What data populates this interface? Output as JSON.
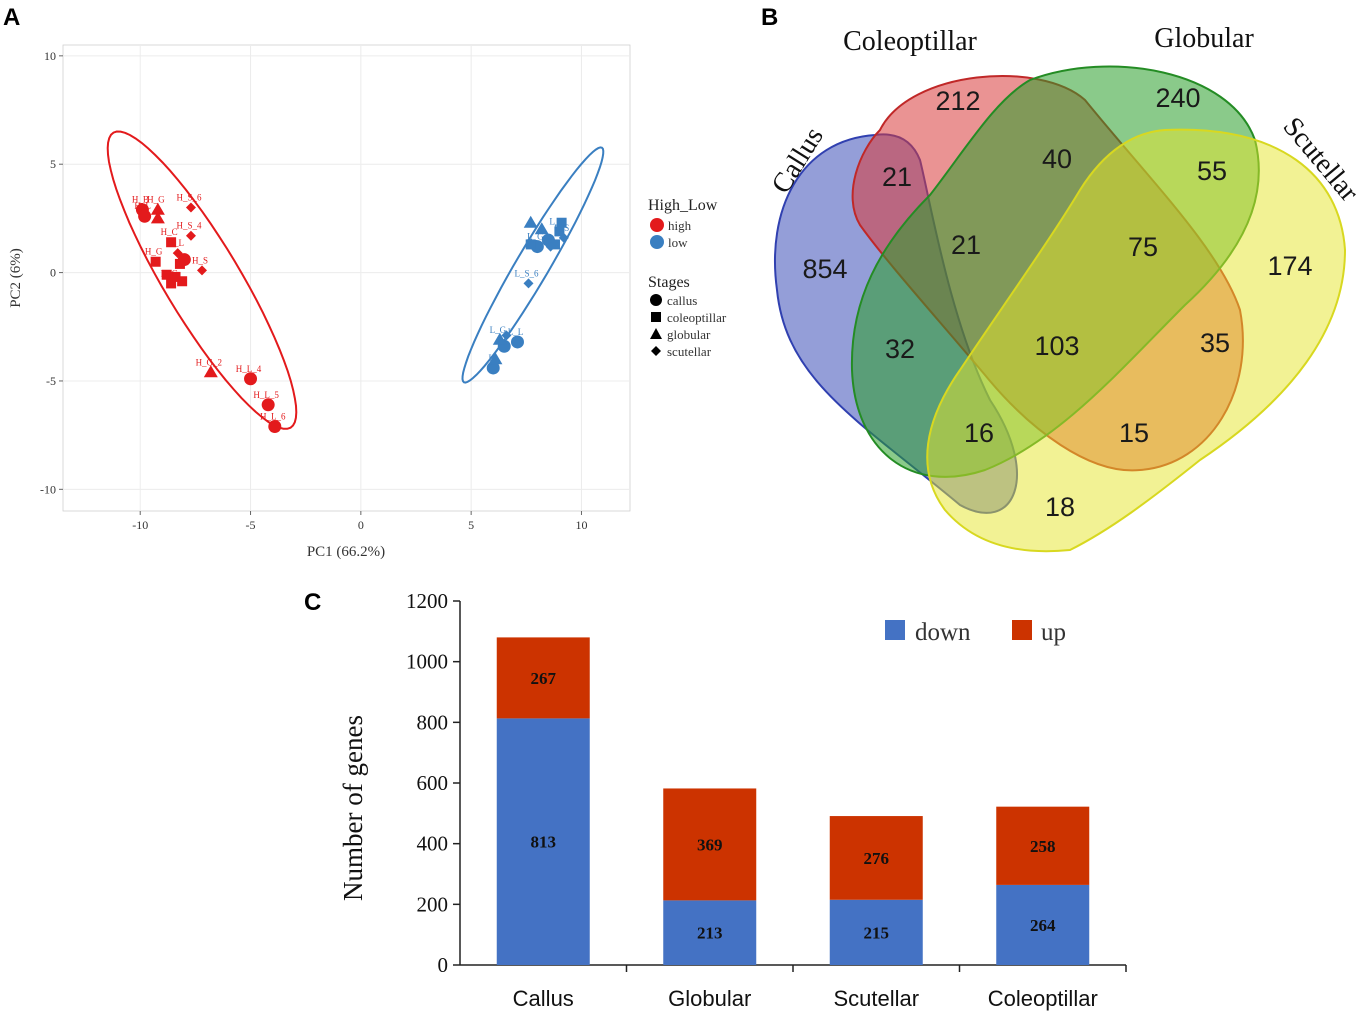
{
  "panels": {
    "a": "A",
    "b": "B",
    "c": "C"
  },
  "colors": {
    "high": "#e31a1c",
    "low": "#3a7fc1",
    "down": "#4472c4",
    "up": "#cc3300"
  },
  "chart_data": [
    {
      "type": "scatter",
      "xlabel": "PC1 (66.2%)",
      "ylabel": "PC2 (6%)",
      "xlim": [
        -13.5,
        12.2
      ],
      "ylim": [
        -11,
        10.5
      ],
      "xticks": [
        -10,
        -5,
        0,
        5,
        10
      ],
      "yticks": [
        -10,
        -5,
        0,
        5,
        10
      ],
      "xtick_labels": [
        "-10",
        "-5",
        "0",
        "5",
        "10"
      ],
      "ytick_labels": [
        "-10",
        "-5",
        "0",
        "5",
        "10"
      ],
      "legend": {
        "group_title": "High_Low",
        "groups": [
          {
            "key": "high",
            "label": "high"
          },
          {
            "key": "low",
            "label": "low"
          }
        ],
        "shape_title": "Stages",
        "shapes": [
          {
            "key": "circle",
            "label": "callus"
          },
          {
            "key": "square",
            "label": "coleoptillar"
          },
          {
            "key": "triangle",
            "label": "globular"
          },
          {
            "key": "diamond",
            "label": "scutellar"
          }
        ]
      },
      "ellipses": [
        {
          "group": "high",
          "cx": -7.2,
          "cy": -0.35,
          "rx": 7.9,
          "ry": 1.72,
          "angle_deg": -59.5
        },
        {
          "group": "low",
          "cx": 7.8,
          "cy": 0.35,
          "rx": 6.25,
          "ry": 0.75,
          "angle_deg": 60
        }
      ],
      "points": [
        {
          "g": "high",
          "s": "circle",
          "x": -9.9,
          "y": 2.9,
          "label": "H_B"
        },
        {
          "g": "high",
          "s": "circle",
          "x": -9.8,
          "y": 2.6,
          "label": "H_L"
        },
        {
          "g": "high",
          "s": "circle",
          "x": -5.0,
          "y": -4.9,
          "label": "H_L_4"
        },
        {
          "g": "high",
          "s": "circle",
          "x": -4.2,
          "y": -6.1,
          "label": "H_L_5"
        },
        {
          "g": "high",
          "s": "circle",
          "x": -3.9,
          "y": -7.1,
          "label": "H_L_6"
        },
        {
          "g": "high",
          "s": "circle",
          "x": -8.0,
          "y": 0.6,
          "label": ""
        },
        {
          "g": "high",
          "s": "triangle",
          "x": -9.2,
          "y": 2.9,
          "label": "H_G"
        },
        {
          "g": "high",
          "s": "triangle",
          "x": -9.2,
          "y": 2.5,
          "label": ""
        },
        {
          "g": "high",
          "s": "triangle",
          "x": -6.8,
          "y": -4.6,
          "label": "H_G_2"
        },
        {
          "g": "high",
          "s": "square",
          "x": -8.6,
          "y": 1.4,
          "label": "H_C"
        },
        {
          "g": "high",
          "s": "square",
          "x": -9.3,
          "y": 0.5,
          "label": "H_G"
        },
        {
          "g": "high",
          "s": "square",
          "x": -8.2,
          "y": 0.4,
          "label": ""
        },
        {
          "g": "high",
          "s": "square",
          "x": -8.8,
          "y": -0.1,
          "label": ""
        },
        {
          "g": "high",
          "s": "square",
          "x": -8.4,
          "y": -0.2,
          "label": ""
        },
        {
          "g": "high",
          "s": "square",
          "x": -8.6,
          "y": -0.5,
          "label": "H_C"
        },
        {
          "g": "high",
          "s": "square",
          "x": -8.1,
          "y": -0.4,
          "label": ""
        },
        {
          "g": "high",
          "s": "diamond",
          "x": -7.7,
          "y": 3.0,
          "label": "H_S_6"
        },
        {
          "g": "high",
          "s": "diamond",
          "x": -7.7,
          "y": 1.7,
          "label": "H_S_4"
        },
        {
          "g": "high",
          "s": "diamond",
          "x": -7.2,
          "y": 0.1,
          "label": "H_S"
        },
        {
          "g": "high",
          "s": "diamond",
          "x": -8.3,
          "y": 0.9,
          "label": "H_L"
        },
        {
          "g": "low",
          "s": "circle",
          "x": 8.5,
          "y": 1.5,
          "label": ""
        },
        {
          "g": "low",
          "s": "circle",
          "x": 8.0,
          "y": 1.2,
          "label": "L_G"
        },
        {
          "g": "low",
          "s": "circle",
          "x": 7.1,
          "y": -3.2,
          "label": "L_L"
        },
        {
          "g": "low",
          "s": "circle",
          "x": 6.5,
          "y": -3.4,
          "label": ""
        },
        {
          "g": "low",
          "s": "circle",
          "x": 6.0,
          "y": -4.4,
          "label": "L"
        },
        {
          "g": "low",
          "s": "square",
          "x": 8.8,
          "y": 1.3,
          "label": ""
        },
        {
          "g": "low",
          "s": "square",
          "x": 9.0,
          "y": 1.9,
          "label": "L_C"
        },
        {
          "g": "low",
          "s": "square",
          "x": 7.7,
          "y": 1.3,
          "label": ""
        },
        {
          "g": "low",
          "s": "square",
          "x": 9.1,
          "y": 2.3,
          "label": ""
        },
        {
          "g": "low",
          "s": "triangle",
          "x": 8.2,
          "y": 2.0,
          "label": ""
        },
        {
          "g": "low",
          "s": "triangle",
          "x": 6.3,
          "y": -3.1,
          "label": "L_G"
        },
        {
          "g": "low",
          "s": "triangle",
          "x": 6.1,
          "y": -4.0,
          "label": ""
        },
        {
          "g": "low",
          "s": "triangle",
          "x": 7.7,
          "y": 2.3,
          "label": ""
        },
        {
          "g": "low",
          "s": "diamond",
          "x": 7.6,
          "y": -0.5,
          "label": "L_S_6"
        },
        {
          "g": "low",
          "s": "diamond",
          "x": 8.6,
          "y": 1.2,
          "label": ""
        },
        {
          "g": "low",
          "s": "diamond",
          "x": 9.2,
          "y": 1.6,
          "label": "L_S"
        },
        {
          "g": "low",
          "s": "diamond",
          "x": 6.6,
          "y": -2.9,
          "label": ""
        }
      ]
    },
    {
      "type": "venn",
      "sets": [
        "Callus",
        "Coleoptillar",
        "Globular",
        "Scutellar"
      ],
      "set_colors": [
        "#3d4fb8",
        "#d93a3a",
        "#2a9e2a",
        "#e6e62a"
      ],
      "regions": [
        {
          "sets": [
            "Callus"
          ],
          "value": 854
        },
        {
          "sets": [
            "Coleoptillar"
          ],
          "value": 212
        },
        {
          "sets": [
            "Globular"
          ],
          "value": 240
        },
        {
          "sets": [
            "Scutellar"
          ],
          "value": 174
        },
        {
          "sets": [
            "Callus",
            "Coleoptillar"
          ],
          "value": 21
        },
        {
          "sets": [
            "Coleoptillar",
            "Globular"
          ],
          "value": 40
        },
        {
          "sets": [
            "Globular",
            "Scutellar"
          ],
          "value": 55
        },
        {
          "sets": [
            "Callus",
            "Coleoptillar",
            "Globular"
          ],
          "value": 21
        },
        {
          "sets": [
            "Coleoptillar",
            "Globular",
            "Scutellar"
          ],
          "value": 75
        },
        {
          "sets": [
            "Callus",
            "Globular"
          ],
          "value": 32
        },
        {
          "sets": [
            "Callus",
            "Coleoptillar",
            "Globular",
            "Scutellar"
          ],
          "value": 103
        },
        {
          "sets": [
            "Coleoptillar",
            "Scutellar"
          ],
          "value": 35
        },
        {
          "sets": [
            "Callus",
            "Globular",
            "Scutellar"
          ],
          "value": 16
        },
        {
          "sets": [
            "Callus",
            "Coleoptillar",
            "Scutellar"
          ],
          "value": 15
        },
        {
          "sets": [
            "Callus",
            "Scutellar"
          ],
          "value": 18
        }
      ]
    },
    {
      "type": "bar",
      "stacked": true,
      "ylabel": "Number of genes",
      "ylim": [
        0,
        1200
      ],
      "yticks": [
        0,
        200,
        400,
        600,
        800,
        1000,
        1200
      ],
      "ytick_labels": [
        "0",
        "200",
        "400",
        "600",
        "800",
        "1000",
        "1200"
      ],
      "categories": [
        "Callus",
        "Globular",
        "Scutellar",
        "Coleoptillar"
      ],
      "series": [
        {
          "name": "down",
          "values": [
            813,
            213,
            215,
            264
          ],
          "labels": [
            "813",
            "213",
            "215",
            "264"
          ]
        },
        {
          "name": "up",
          "values": [
            267,
            369,
            276,
            258
          ],
          "labels": [
            "267",
            "369",
            "276",
            "258"
          ]
        }
      ],
      "legend": [
        "down",
        "up"
      ]
    }
  ]
}
